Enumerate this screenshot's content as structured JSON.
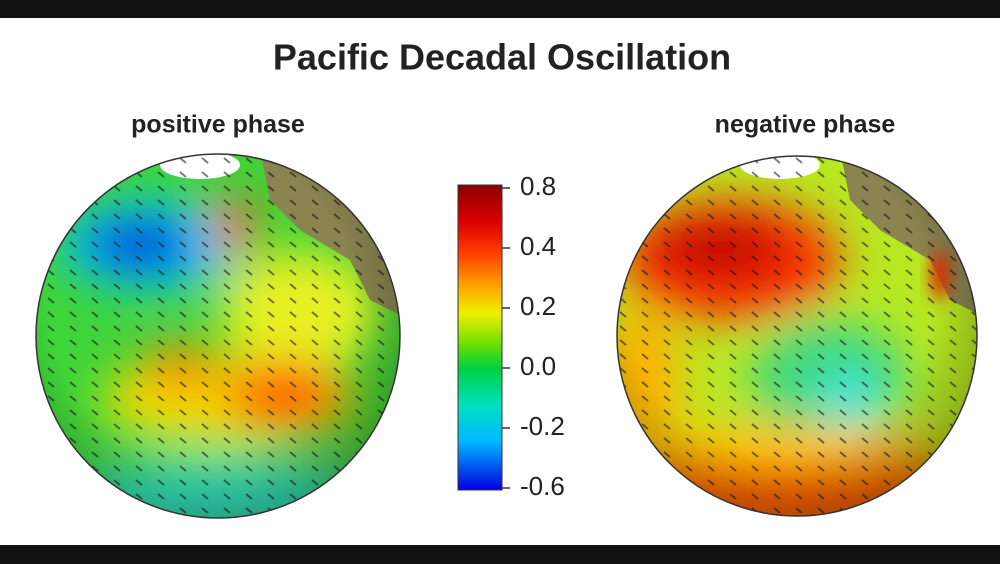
{
  "title": "Pacific Decadal Oscillation",
  "panels": [
    {
      "label": "positive phase"
    },
    {
      "label": "negative phase"
    }
  ],
  "colorbar": {
    "ticks": [
      0.8,
      0.4,
      0.2,
      {
        "value": 0,
        "label": "0.0"
      },
      -0.2,
      -0.6
    ]
  }
}
